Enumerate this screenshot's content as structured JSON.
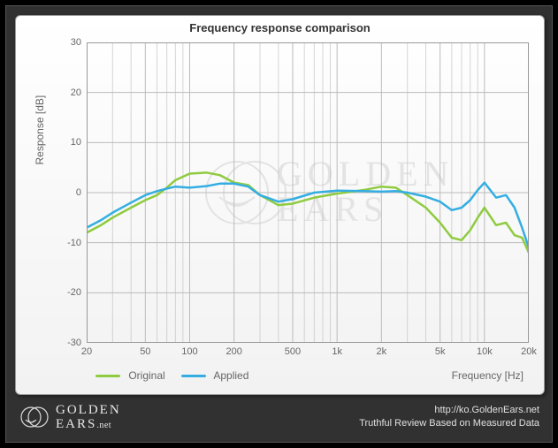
{
  "chart": {
    "title": "Frequency response comparison",
    "type": "line",
    "ylabel": "Response [dB]",
    "xlabel": "Frequency [Hz]",
    "ylim": [
      -30,
      30
    ],
    "ytick_step": 10,
    "yticks": [
      -30,
      -20,
      -10,
      0,
      10,
      20,
      30
    ],
    "xlim": [
      20,
      20000
    ],
    "xscale": "log",
    "xticks_major": [
      20,
      50,
      100,
      200,
      500,
      1000,
      2000,
      5000,
      10000,
      20000
    ],
    "xtick_labels": [
      "20",
      "50",
      "100",
      "200",
      "500",
      "1k",
      "2k",
      "5k",
      "10k",
      "20k"
    ],
    "xticks_minor": [
      30,
      40,
      60,
      70,
      80,
      90,
      300,
      400,
      600,
      700,
      800,
      900,
      3000,
      4000,
      6000,
      7000,
      8000,
      9000
    ],
    "grid_color": "#bbbbbb",
    "border_color": "#999999",
    "background_color": "#ffffff",
    "title_fontsize": 13,
    "label_fontsize": 12,
    "tick_fontsize": 11,
    "line_width": 2.5,
    "series": [
      {
        "name": "Original",
        "color": "#8fcb3f",
        "x": [
          20,
          25,
          30,
          40,
          50,
          60,
          70,
          80,
          100,
          130,
          160,
          200,
          250,
          300,
          400,
          500,
          700,
          1000,
          1500,
          2000,
          2500,
          3000,
          4000,
          5000,
          6000,
          7000,
          8000,
          9000,
          10000,
          12000,
          14000,
          16000,
          18000,
          20000
        ],
        "y": [
          -8,
          -6.5,
          -5,
          -3,
          -1.5,
          -0.5,
          1,
          2.5,
          3.8,
          4,
          3.5,
          2,
          1.5,
          -0.5,
          -2.5,
          -2.2,
          -1,
          -0.2,
          0.5,
          1.2,
          1,
          -0.5,
          -3,
          -6,
          -9,
          -9.5,
          -7.5,
          -5,
          -3,
          -6.5,
          -6,
          -8.5,
          -9,
          -12
        ]
      },
      {
        "name": "Applied",
        "color": "#34aee2",
        "x": [
          20,
          25,
          30,
          40,
          50,
          60,
          70,
          80,
          100,
          130,
          160,
          200,
          250,
          300,
          400,
          500,
          700,
          1000,
          1500,
          2000,
          2500,
          3000,
          4000,
          5000,
          6000,
          7000,
          8000,
          9000,
          10000,
          12000,
          14000,
          16000,
          18000,
          20000
        ],
        "y": [
          -7,
          -5.5,
          -4,
          -2,
          -0.5,
          0.3,
          0.8,
          1.2,
          1,
          1.3,
          1.8,
          1.8,
          1.2,
          -0.5,
          -1.8,
          -1.3,
          0,
          0.4,
          0.3,
          0.2,
          0.3,
          0,
          -0.8,
          -1.8,
          -3.5,
          -3,
          -1.5,
          0.5,
          2,
          -1,
          -0.5,
          -3,
          -7,
          -11
        ]
      }
    ],
    "legend": {
      "items": [
        "Original",
        "Applied"
      ]
    }
  },
  "watermark": {
    "text1": "GOLDEN",
    "text2": "EARS",
    "color": "#e2e2e2"
  },
  "footer": {
    "brand_line1": "GOLDEN",
    "brand_line2": "EARS",
    "brand_suffix": ".net",
    "url": "http://ko.GoldenEars.net",
    "tagline": "Truthful Review Based on Measured Data",
    "text_color": "#e0e0e0"
  },
  "frame": {
    "outer_bg": "#000000",
    "inner_bg": "#313131"
  }
}
